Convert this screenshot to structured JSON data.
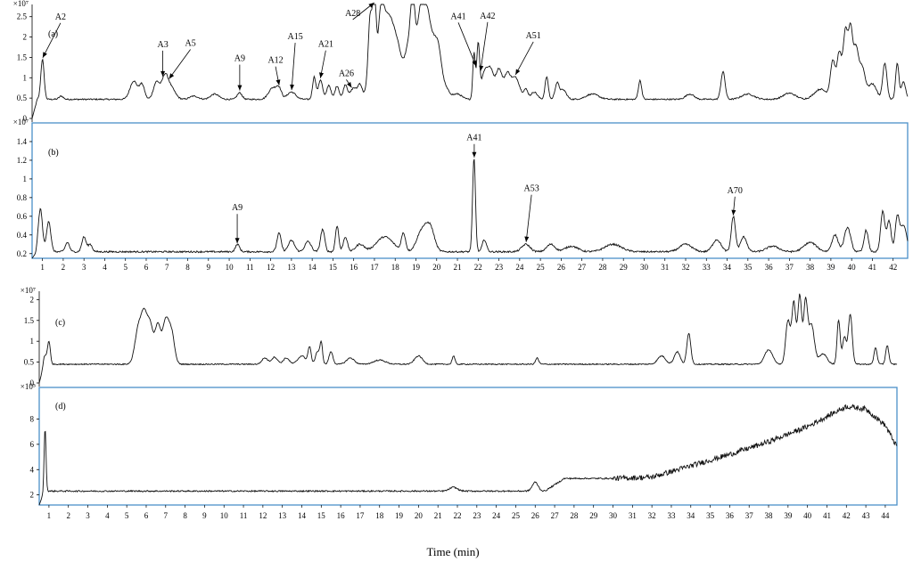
{
  "chart_data": {
    "type": "line",
    "xlabel": "Time (min)",
    "panels": [
      {
        "label": "(a)",
        "multiplier": "×10⁷",
        "yticks": [
          0,
          0.5,
          1,
          1.5,
          2,
          2.5
        ],
        "ylim": [
          0,
          2.8
        ],
        "xlim": [
          0.5,
          42.7
        ],
        "xticks": [
          1,
          2,
          3,
          4,
          5,
          6,
          7,
          8,
          9,
          10,
          11,
          12,
          13,
          14,
          15,
          16,
          17,
          18,
          19,
          20,
          21,
          22,
          23,
          24,
          25,
          26,
          27,
          28,
          29,
          30,
          31,
          32,
          33,
          34,
          35,
          36,
          37,
          38,
          39,
          40,
          41,
          42
        ],
        "baseline": 0.47,
        "peaks": [
          [
            1.0,
            1.45,
            0.08
          ],
          [
            1.9,
            0.55,
            0.1
          ],
          [
            5.4,
            0.92,
            0.18
          ],
          [
            5.8,
            0.82,
            0.12
          ],
          [
            6.5,
            0.9,
            0.15
          ],
          [
            6.9,
            1.0,
            0.15
          ],
          [
            7.2,
            0.75,
            0.2
          ],
          [
            8.3,
            0.55,
            0.2
          ],
          [
            9.3,
            0.6,
            0.2
          ],
          [
            10.5,
            0.63,
            0.12
          ],
          [
            12.1,
            0.75,
            0.2
          ],
          [
            12.4,
            0.7,
            0.12
          ],
          [
            13.0,
            0.65,
            0.2
          ],
          [
            14.1,
            1.02,
            0.08
          ],
          [
            14.4,
            0.95,
            0.1
          ],
          [
            14.8,
            0.82,
            0.1
          ],
          [
            15.2,
            0.8,
            0.1
          ],
          [
            15.6,
            0.83,
            0.1
          ],
          [
            16.0,
            0.75,
            0.15
          ],
          [
            16.3,
            0.8,
            0.1
          ],
          [
            16.6,
            0.62,
            0.15
          ],
          [
            16.8,
            2.45,
            0.1
          ],
          [
            17.0,
            2.7,
            0.08
          ],
          [
            17.3,
            2.3,
            0.15
          ],
          [
            17.6,
            2.0,
            0.2
          ],
          [
            17.9,
            1.55,
            0.2
          ],
          [
            18.2,
            1.35,
            0.2
          ],
          [
            18.6,
            1.5,
            0.15
          ],
          [
            18.85,
            2.7,
            0.12
          ],
          [
            19.2,
            2.5,
            0.15
          ],
          [
            19.5,
            2.1,
            0.15
          ],
          [
            19.8,
            1.8,
            0.2
          ],
          [
            20.1,
            1.3,
            0.15
          ],
          [
            20.4,
            0.75,
            0.2
          ],
          [
            21.0,
            0.6,
            0.2
          ],
          [
            21.8,
            1.6,
            0.06
          ],
          [
            22.0,
            1.8,
            0.07
          ],
          [
            22.3,
            1.1,
            0.15
          ],
          [
            22.6,
            1.15,
            0.15
          ],
          [
            23.0,
            1.2,
            0.15
          ],
          [
            23.4,
            1.05,
            0.15
          ],
          [
            23.8,
            1.0,
            0.2
          ],
          [
            24.3,
            0.7,
            0.1
          ],
          [
            24.7,
            0.65,
            0.15
          ],
          [
            25.3,
            1.02,
            0.08
          ],
          [
            25.8,
            0.85,
            0.1
          ],
          [
            26.1,
            0.7,
            0.15
          ],
          [
            27.5,
            0.6,
            0.3
          ],
          [
            29.8,
            0.93,
            0.08
          ],
          [
            32.2,
            0.6,
            0.2
          ],
          [
            33.8,
            1.15,
            0.1
          ],
          [
            35.0,
            0.6,
            0.3
          ],
          [
            37.0,
            0.62,
            0.3
          ],
          [
            38.5,
            0.72,
            0.3
          ],
          [
            39.1,
            1.4,
            0.12
          ],
          [
            39.4,
            1.55,
            0.1
          ],
          [
            39.7,
            2.15,
            0.12
          ],
          [
            39.95,
            2.0,
            0.1
          ],
          [
            40.2,
            1.65,
            0.12
          ],
          [
            40.5,
            1.25,
            0.15
          ],
          [
            41.0,
            0.85,
            0.2
          ],
          [
            41.6,
            1.35,
            0.1
          ],
          [
            42.2,
            1.35,
            0.08
          ],
          [
            42.5,
            0.9,
            0.1
          ]
        ],
        "annotations": [
          {
            "text": "A2",
            "x": 1.0
          },
          {
            "text": "A3",
            "x": 6.8
          },
          {
            "text": "A5",
            "x": 7.1
          },
          {
            "text": "A9",
            "x": 10.5
          },
          {
            "text": "A12",
            "x": 12.4
          },
          {
            "text": "A15",
            "x": 13.0
          },
          {
            "text": "A21",
            "x": 14.4
          },
          {
            "text": "A26",
            "x": 15.9
          },
          {
            "text": "A28",
            "x": 17.0
          },
          {
            "text": "A41",
            "x": 21.9
          },
          {
            "text": "A42",
            "x": 22.1
          },
          {
            "text": "A51",
            "x": 23.8
          }
        ]
      },
      {
        "label": "(b)",
        "multiplier": "×10⁷",
        "yticks": [
          0.2,
          0.4,
          0.6,
          0.8,
          1,
          1.2,
          1.4
        ],
        "ylim": [
          0.15,
          1.6
        ],
        "xlim": [
          0.5,
          42.7
        ],
        "xticks": [
          1,
          2,
          3,
          4,
          5,
          6,
          7,
          8,
          9,
          10,
          11,
          12,
          13,
          14,
          15,
          16,
          17,
          18,
          19,
          20,
          21,
          22,
          23,
          24,
          25,
          26,
          27,
          28,
          29,
          30,
          31,
          32,
          33,
          34,
          35,
          36,
          37,
          38,
          39,
          40,
          41,
          42
        ],
        "baseline": 0.22,
        "peaks": [
          [
            0.9,
            0.68,
            0.1
          ],
          [
            1.3,
            0.55,
            0.1
          ],
          [
            2.2,
            0.32,
            0.1
          ],
          [
            3.0,
            0.38,
            0.1
          ],
          [
            3.3,
            0.3,
            0.1
          ],
          [
            10.4,
            0.3,
            0.1
          ],
          [
            12.4,
            0.42,
            0.1
          ],
          [
            13.0,
            0.34,
            0.15
          ],
          [
            13.8,
            0.33,
            0.15
          ],
          [
            14.5,
            0.46,
            0.1
          ],
          [
            15.2,
            0.5,
            0.08
          ],
          [
            15.6,
            0.38,
            0.1
          ],
          [
            16.3,
            0.3,
            0.2
          ],
          [
            17.5,
            0.38,
            0.4
          ],
          [
            18.4,
            0.41,
            0.1
          ],
          [
            19.3,
            0.45,
            0.25
          ],
          [
            19.7,
            0.45,
            0.2
          ],
          [
            21.8,
            1.22,
            0.07
          ],
          [
            22.3,
            0.35,
            0.1
          ],
          [
            24.3,
            0.3,
            0.2
          ],
          [
            25.5,
            0.3,
            0.2
          ],
          [
            26.5,
            0.28,
            0.3
          ],
          [
            28.5,
            0.3,
            0.4
          ],
          [
            32.0,
            0.3,
            0.3
          ],
          [
            33.5,
            0.35,
            0.2
          ],
          [
            34.3,
            0.6,
            0.1
          ],
          [
            34.8,
            0.38,
            0.15
          ],
          [
            36.2,
            0.28,
            0.3
          ],
          [
            38.0,
            0.32,
            0.3
          ],
          [
            39.2,
            0.4,
            0.15
          ],
          [
            39.8,
            0.48,
            0.15
          ],
          [
            40.7,
            0.45,
            0.1
          ],
          [
            41.5,
            0.65,
            0.1
          ],
          [
            41.8,
            0.55,
            0.1
          ],
          [
            42.2,
            0.58,
            0.1
          ],
          [
            42.5,
            0.5,
            0.15
          ]
        ],
        "annotations": [
          {
            "text": "A9",
            "x": 10.4
          },
          {
            "text": "A41",
            "x": 21.8
          },
          {
            "text": "A53",
            "x": 24.3
          },
          {
            "text": "A70",
            "x": 34.3
          }
        ]
      },
      {
        "label": "(c)",
        "multiplier": "×10⁷",
        "yticks": [
          0,
          0.5,
          1,
          1.5,
          2
        ],
        "ylim": [
          0,
          2.2
        ],
        "xlim": [
          0.5,
          44.6
        ],
        "xticks": [],
        "baseline": 0.45,
        "peaks": [
          [
            0.8,
            0.65,
            0.1
          ],
          [
            1.0,
            0.98,
            0.07
          ],
          [
            5.6,
            1.3,
            0.18
          ],
          [
            5.9,
            1.45,
            0.15
          ],
          [
            6.2,
            1.35,
            0.15
          ],
          [
            6.6,
            1.4,
            0.15
          ],
          [
            7.0,
            1.45,
            0.15
          ],
          [
            7.3,
            1.2,
            0.15
          ],
          [
            12.1,
            0.6,
            0.15
          ],
          [
            12.6,
            0.62,
            0.15
          ],
          [
            13.2,
            0.6,
            0.15
          ],
          [
            14.0,
            0.65,
            0.2
          ],
          [
            14.4,
            0.85,
            0.08
          ],
          [
            14.8,
            0.75,
            0.1
          ],
          [
            15.0,
            0.95,
            0.07
          ],
          [
            15.5,
            0.75,
            0.1
          ],
          [
            16.5,
            0.6,
            0.2
          ],
          [
            18.0,
            0.55,
            0.3
          ],
          [
            20.0,
            0.65,
            0.2
          ],
          [
            21.8,
            0.65,
            0.07
          ],
          [
            26.1,
            0.6,
            0.08
          ],
          [
            32.5,
            0.65,
            0.2
          ],
          [
            33.3,
            0.75,
            0.15
          ],
          [
            33.9,
            1.2,
            0.1
          ],
          [
            38.0,
            0.8,
            0.2
          ],
          [
            39.0,
            1.5,
            0.12
          ],
          [
            39.3,
            1.9,
            0.1
          ],
          [
            39.6,
            2.1,
            0.1
          ],
          [
            39.9,
            1.9,
            0.1
          ],
          [
            40.2,
            1.4,
            0.15
          ],
          [
            40.8,
            0.7,
            0.2
          ],
          [
            41.6,
            1.5,
            0.08
          ],
          [
            41.9,
            1.1,
            0.1
          ],
          [
            42.2,
            1.65,
            0.1
          ],
          [
            43.5,
            0.85,
            0.08
          ],
          [
            44.1,
            0.9,
            0.08
          ]
        ],
        "annotations": []
      },
      {
        "label": "(d)",
        "multiplier": "×10⁵",
        "yticks": [
          2,
          4,
          6,
          8
        ],
        "ylim": [
          1.2,
          10.5
        ],
        "xlim": [
          0.5,
          44.6
        ],
        "xticks": [
          1,
          2,
          3,
          4,
          5,
          6,
          7,
          8,
          9,
          10,
          11,
          12,
          13,
          14,
          15,
          16,
          17,
          18,
          19,
          20,
          21,
          22,
          23,
          24,
          25,
          26,
          27,
          28,
          29,
          30,
          31,
          32,
          33,
          34,
          35,
          36,
          37,
          38,
          39,
          40,
          41,
          42,
          43,
          44
        ],
        "baseline": 2.3,
        "peaks": [
          [
            0.8,
            7.2,
            0.05
          ],
          [
            21.8,
            2.6,
            0.2
          ],
          [
            26.0,
            3.0,
            0.15
          ]
        ],
        "ramp": [
          [
            26.5,
            2.3
          ],
          [
            27.5,
            3.3
          ],
          [
            30.0,
            3.3
          ],
          [
            32.0,
            3.4
          ],
          [
            34.0,
            4.3
          ],
          [
            36.0,
            5.2
          ],
          [
            38.0,
            6.2
          ],
          [
            40.0,
            7.4
          ],
          [
            42.0,
            9.0
          ],
          [
            43.0,
            8.8
          ],
          [
            44.0,
            7.5
          ],
          [
            44.6,
            5.8
          ]
        ],
        "annotations": []
      }
    ]
  }
}
